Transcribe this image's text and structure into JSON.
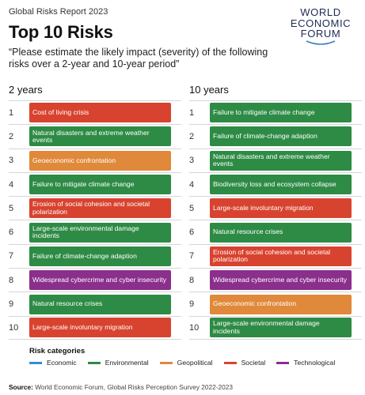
{
  "header": {
    "report_label": "Global Risks Report 2023",
    "title": "Top 10 Risks",
    "question": "“Please estimate the likely impact (severity) of the following risks over a 2-year and 10-year period”"
  },
  "logo": {
    "line1": "WORLD",
    "line2": "ECONOMIC",
    "line3": "FORUM"
  },
  "columns": {
    "two_year_label": "2 years",
    "ten_year_label": "10 years"
  },
  "colors": {
    "economic": "#2f8fd6",
    "environmental": "#2e8b45",
    "geopolitical": "#e0893a",
    "societal": "#d8432f",
    "technological": "#8a2f8c"
  },
  "two_year": [
    {
      "rank": "1",
      "label": "Cost of living crisis",
      "category": "societal"
    },
    {
      "rank": "2",
      "label": "Natural disasters and extreme weather events",
      "category": "environmental"
    },
    {
      "rank": "3",
      "label": "Geoeconomic confrontation",
      "category": "geopolitical"
    },
    {
      "rank": "4",
      "label": "Failure to mitigate climate change",
      "category": "environmental"
    },
    {
      "rank": "5",
      "label": "Erosion of social cohesion and societal polarization",
      "category": "societal"
    },
    {
      "rank": "6",
      "label": "Large-scale environmental damage incidents",
      "category": "environmental"
    },
    {
      "rank": "7",
      "label": "Failure of climate-change adaption",
      "category": "environmental"
    },
    {
      "rank": "8",
      "label": "Widespread cybercrime and cyber insecurity",
      "category": "technological"
    },
    {
      "rank": "9",
      "label": "Natural resource crises",
      "category": "environmental"
    },
    {
      "rank": "10",
      "label": "Large-scale involuntary migration",
      "category": "societal"
    }
  ],
  "ten_year": [
    {
      "rank": "1",
      "label": "Failure to mitigate climate change",
      "category": "environmental"
    },
    {
      "rank": "2",
      "label": "Failure of climate-change adaption",
      "category": "environmental"
    },
    {
      "rank": "3",
      "label": "Natural disasters and extreme weather events",
      "category": "environmental"
    },
    {
      "rank": "4",
      "label": "Biodiversity loss and ecosystem collapse",
      "category": "environmental"
    },
    {
      "rank": "5",
      "label": "Large-scale involuntary migration",
      "category": "societal"
    },
    {
      "rank": "6",
      "label": "Natural resource crises",
      "category": "environmental"
    },
    {
      "rank": "7",
      "label": "Erosion of social cohesion and societal polarization",
      "category": "societal"
    },
    {
      "rank": "8",
      "label": "Widespread cybercrime and cyber insecurity",
      "category": "technological"
    },
    {
      "rank": "9",
      "label": "Geoeconomic confrontation",
      "category": "geopolitical"
    },
    {
      "rank": "10",
      "label": "Large-scale environmental damage incidents",
      "category": "environmental"
    }
  ],
  "legend": {
    "title": "Risk categories",
    "items": [
      {
        "label": "Economic",
        "category": "economic"
      },
      {
        "label": "Environmental",
        "category": "environmental"
      },
      {
        "label": "Geopolitical",
        "category": "geopolitical"
      },
      {
        "label": "Societal",
        "category": "societal"
      },
      {
        "label": "Technological",
        "category": "technological"
      }
    ]
  },
  "source": {
    "prefix": "Source:",
    "text": " World Economic Forum, Global Risks Perception Survey 2022-2023"
  }
}
